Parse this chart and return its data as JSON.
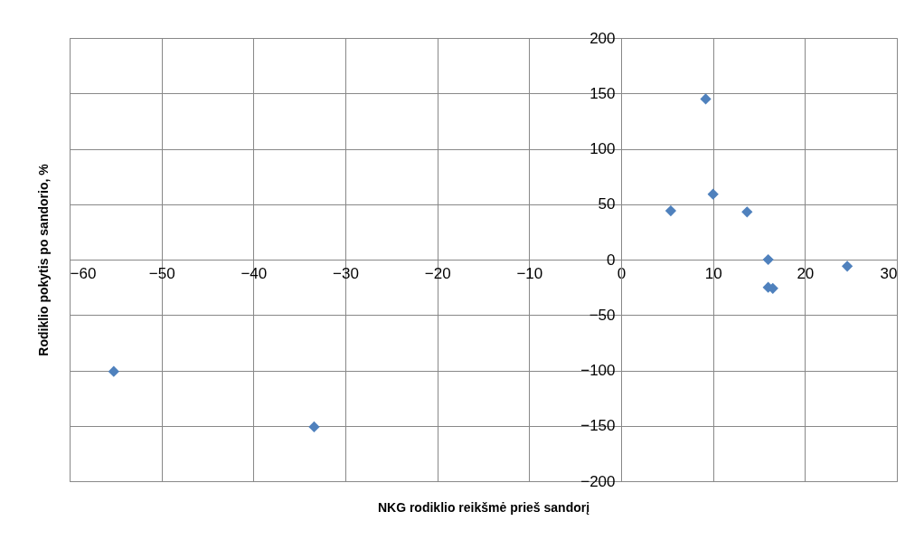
{
  "chart_data": {
    "type": "scatter",
    "xlabel": "NKG rodiklio reikšmė prieš sandorį",
    "ylabel": "Rodiklio pokytis po sandorio, %",
    "x": [
      -55.2,
      -33.4,
      5.4,
      9.2,
      10.0,
      13.7,
      16.0,
      16.0,
      16.5,
      24.6
    ],
    "series": [
      {
        "color": "#4f81bd",
        "values": [
          -101,
          -151,
          44,
          145,
          59,
          43,
          0,
          -25,
          -26,
          -6
        ]
      }
    ],
    "xlim": [
      -60,
      30
    ],
    "xticks": [
      -60,
      -50,
      -40,
      -30,
      -20,
      -10,
      0,
      10,
      20,
      30
    ],
    "ylim": [
      -200,
      200
    ],
    "yticks": [
      -200,
      -150,
      -100,
      -50,
      0,
      50,
      100,
      150,
      200
    ],
    "grid": true,
    "marker": "diamond"
  }
}
